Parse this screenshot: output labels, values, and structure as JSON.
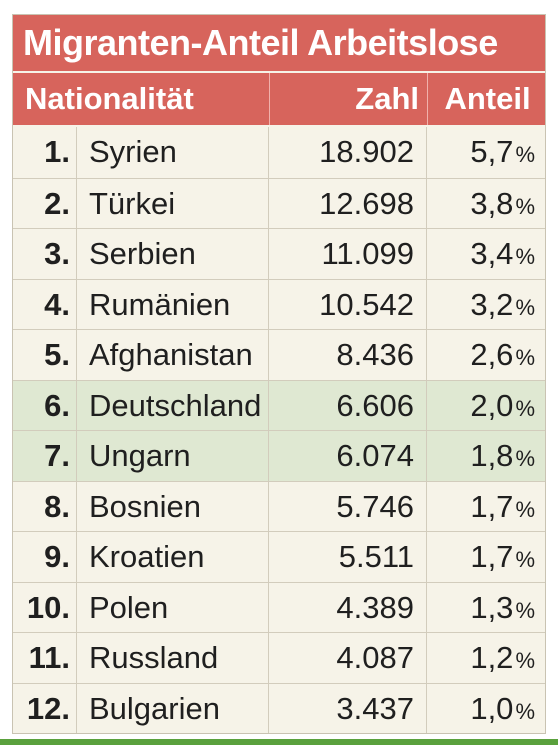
{
  "table": {
    "title": "Migranten-Anteil Arbeitslose",
    "headers": {
      "nationality": "Nationalität",
      "count": "Zahl",
      "share": "Anteil"
    },
    "percent_sign": "%",
    "rows": [
      {
        "rank": "1.",
        "name": "Syrien",
        "count": "18.902",
        "share": "5,7"
      },
      {
        "rank": "2.",
        "name": "Türkei",
        "count": "12.698",
        "share": "3,8"
      },
      {
        "rank": "3.",
        "name": "Serbien",
        "count": "11.099",
        "share": "3,4"
      },
      {
        "rank": "4.",
        "name": "Rumänien",
        "count": "10.542",
        "share": "3,2"
      },
      {
        "rank": "5.",
        "name": "Afghanistan",
        "count": "8.436",
        "share": "2,6"
      },
      {
        "rank": "6.",
        "name": "Deutschland",
        "count": "6.606",
        "share": "2,0",
        "highlight": true
      },
      {
        "rank": "7.",
        "name": "Ungarn",
        "count": "6.074",
        "share": "1,8",
        "highlight": true
      },
      {
        "rank": "8.",
        "name": "Bosnien",
        "count": "5.746",
        "share": "1,7"
      },
      {
        "rank": "9.",
        "name": "Kroatien",
        "count": "5.511",
        "share": "1,7"
      },
      {
        "rank": "10.",
        "name": "Polen",
        "count": "4.389",
        "share": "1,3"
      },
      {
        "rank": "11.",
        "name": "Russland",
        "count": "4.087",
        "share": "1,2"
      },
      {
        "rank": "12.",
        "name": "Bulgarien",
        "count": "3.437",
        "share": "1,0"
      }
    ]
  },
  "colors": {
    "header": "#d7645c",
    "highlight_row": "#dfe8d2",
    "background": "#f6f3e8",
    "bottom_line": "#5aa13d"
  },
  "chart_data": {
    "type": "table",
    "title": "Migranten-Anteil Arbeitslose",
    "columns": [
      "Nationalität",
      "Zahl",
      "Anteil"
    ],
    "categories": [
      "Syrien",
      "Türkei",
      "Serbien",
      "Rumänien",
      "Afghanistan",
      "Deutschland",
      "Ungarn",
      "Bosnien",
      "Kroatien",
      "Polen",
      "Russland",
      "Bulgarien"
    ],
    "series": [
      {
        "name": "Zahl",
        "values": [
          18902,
          12698,
          11099,
          10542,
          8436,
          6606,
          6074,
          5746,
          5511,
          4389,
          4087,
          3437
        ]
      },
      {
        "name": "Anteil",
        "values": [
          5.7,
          3.8,
          3.4,
          3.2,
          2.6,
          2.0,
          1.8,
          1.7,
          1.7,
          1.3,
          1.2,
          1.0
        ]
      }
    ]
  }
}
